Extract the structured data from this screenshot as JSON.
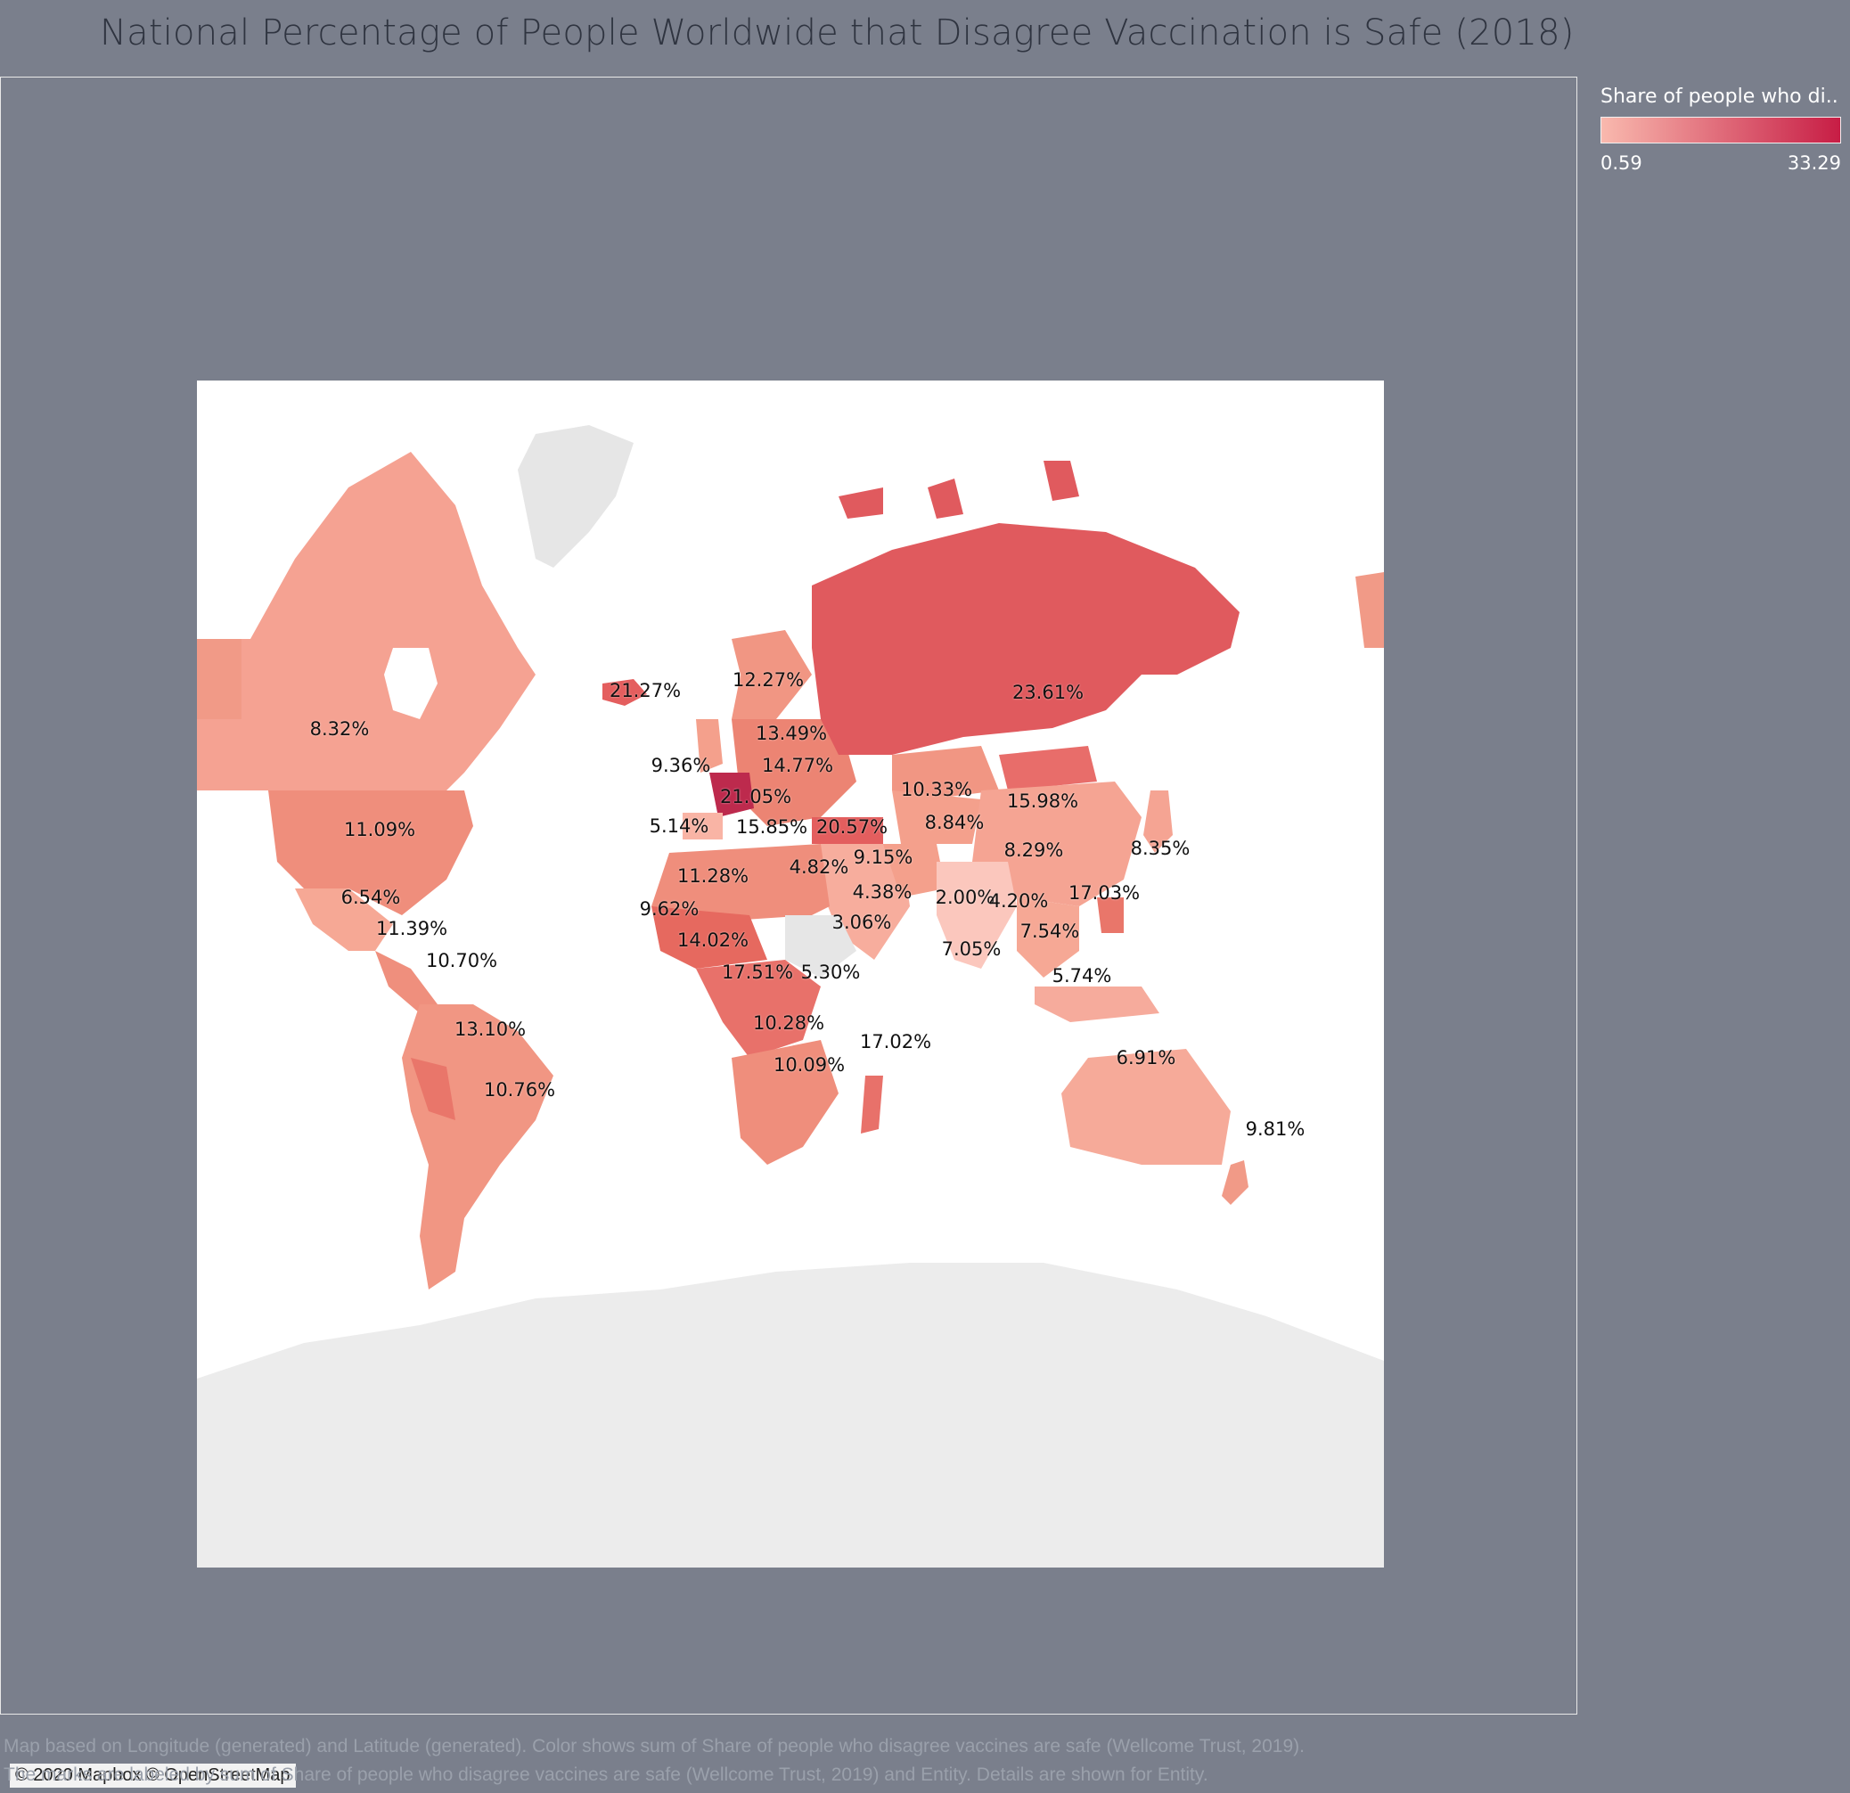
{
  "title": "National Percentage of People Worldwide that Disagree Vaccination is Safe (2018)",
  "legend": {
    "title": "Share of people who di..",
    "min": "0.59",
    "max": "33.29",
    "color_low": "#f9b9ae",
    "color_high": "#c71d45"
  },
  "attribution": "© 2020 Mapbox © OpenStreetMap",
  "caption": {
    "line1": "Map based on Longitude (generated) and Latitude (generated).  Color shows sum of Share of people who disagree vaccines are safe (Wellcome Trust, 2019).",
    "line2": "The marks are labeled by sum of Share of people who disagree vaccines are safe (Wellcome Trust, 2019) and Entity.  Details are shown for Entity."
  },
  "map_colors": {
    "no_data": "#e6e6e6",
    "ocean": "#ffffff",
    "border": "#8a6060"
  },
  "labels": [
    {
      "id": "canada",
      "text": "8.32%",
      "value": 8.32
    },
    {
      "id": "usa",
      "text": "11.09%",
      "value": 11.09
    },
    {
      "id": "mexico",
      "text": "6.54%",
      "value": 6.54
    },
    {
      "id": "central-america",
      "text": "11.39%",
      "value": 11.39
    },
    {
      "id": "colombia",
      "text": "10.70%",
      "value": 10.7
    },
    {
      "id": "peru-brazil",
      "text": "13.10%",
      "value": 13.1
    },
    {
      "id": "argentina",
      "text": "10.76%",
      "value": 10.76
    },
    {
      "id": "iceland",
      "text": "21.27%",
      "value": 21.27
    },
    {
      "id": "sweden",
      "text": "12.27%",
      "value": 12.27
    },
    {
      "id": "baltics",
      "text": "13.49%",
      "value": 13.49
    },
    {
      "id": "uk",
      "text": "9.36%",
      "value": 9.36
    },
    {
      "id": "poland",
      "text": "14.77%",
      "value": 14.77
    },
    {
      "id": "france",
      "text": "21.05%",
      "value": 21.05
    },
    {
      "id": "spain",
      "text": "5.14%",
      "value": 5.14
    },
    {
      "id": "balkans",
      "text": "15.85%",
      "value": 15.85
    },
    {
      "id": "turkey",
      "text": "20.57%",
      "value": 20.57
    },
    {
      "id": "russia",
      "text": "23.61%",
      "value": 23.61
    },
    {
      "id": "kazakhstan",
      "text": "10.33%",
      "value": 10.33
    },
    {
      "id": "mongolia",
      "text": "15.98%",
      "value": 15.98
    },
    {
      "id": "uzbekistan",
      "text": "8.84%",
      "value": 8.84
    },
    {
      "id": "china",
      "text": "8.29%",
      "value": 8.29
    },
    {
      "id": "japan",
      "text": "8.35%",
      "value": 8.35
    },
    {
      "id": "iran",
      "text": "9.15%",
      "value": 9.15
    },
    {
      "id": "egypt",
      "text": "4.82%",
      "value": 4.82
    },
    {
      "id": "saudi",
      "text": "4.38%",
      "value": 4.38
    },
    {
      "id": "india-north",
      "text": "2.00%",
      "value": 2.0
    },
    {
      "id": "bangladesh",
      "text": "4.20%",
      "value": 4.2
    },
    {
      "id": "philippines",
      "text": "17.03%",
      "value": 17.03
    },
    {
      "id": "thailand",
      "text": "7.54%",
      "value": 7.54
    },
    {
      "id": "india-south",
      "text": "7.05%",
      "value": 7.05
    },
    {
      "id": "indonesia",
      "text": "5.74%",
      "value": 5.74
    },
    {
      "id": "algeria",
      "text": "11.28%",
      "value": 11.28
    },
    {
      "id": "mali",
      "text": "9.62%",
      "value": 9.62
    },
    {
      "id": "nigeria",
      "text": "14.02%",
      "value": 14.02
    },
    {
      "id": "ethiopia",
      "text": "3.06%",
      "value": 3.06
    },
    {
      "id": "congo",
      "text": "17.51%",
      "value": 17.51
    },
    {
      "id": "kenya",
      "text": "5.30%",
      "value": 5.3
    },
    {
      "id": "zambia",
      "text": "10.28%",
      "value": 10.28
    },
    {
      "id": "madagascar",
      "text": "17.02%",
      "value": 17.02
    },
    {
      "id": "south-africa",
      "text": "10.09%",
      "value": 10.09
    },
    {
      "id": "australia",
      "text": "6.91%",
      "value": 6.91
    },
    {
      "id": "new-zealand",
      "text": "9.81%",
      "value": 9.81
    }
  ]
}
